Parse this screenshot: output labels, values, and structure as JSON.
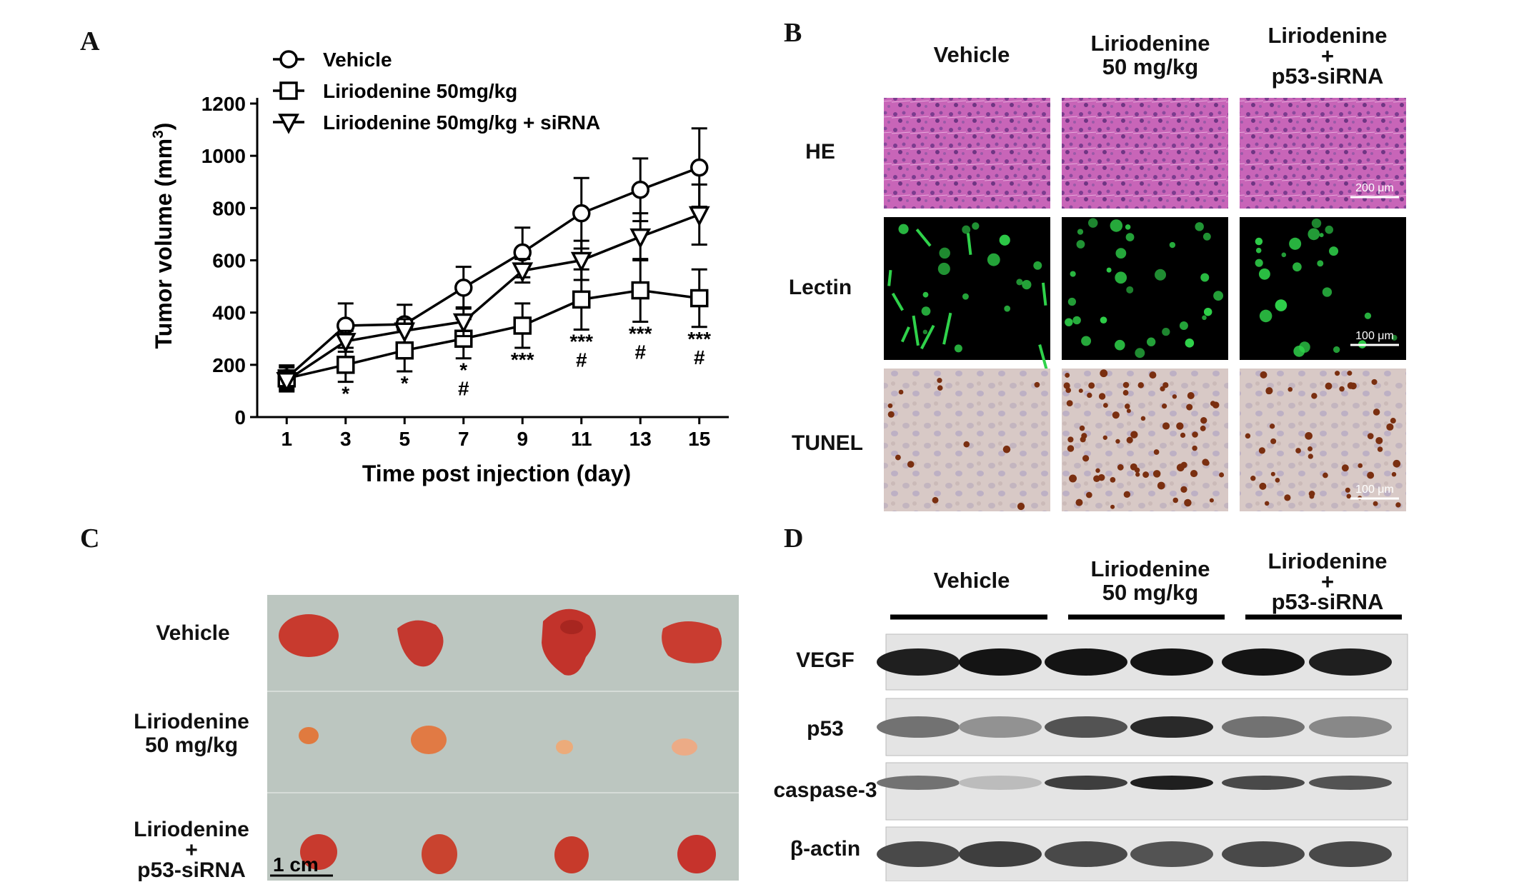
{
  "panels": {
    "a": "A",
    "b": "B",
    "c": "C",
    "d": "D"
  },
  "chart_data": {
    "type": "line",
    "ylabel_main": "Tumor volume (mm",
    "ylabel_sup": "3",
    "ylabel_close": ")",
    "xlabel": "Time post injection (day)",
    "x": [
      1,
      3,
      5,
      7,
      9,
      11,
      13,
      15
    ],
    "xticks": [
      "1",
      "3",
      "5",
      "7",
      "9",
      "11",
      "13",
      "15"
    ],
    "ylim": [
      0,
      1200
    ],
    "yticks": [
      0,
      200,
      400,
      600,
      800,
      1000,
      1200
    ],
    "legend_position": "top-left",
    "series": [
      {
        "name": "Vehicle",
        "marker": "circle",
        "values": [
          150,
          350,
          355,
          495,
          630,
          780,
          870,
          955
        ],
        "err": [
          40,
          85,
          75,
          80,
          95,
          135,
          120,
          150
        ]
      },
      {
        "name": "Liriodenine 50mg/kg",
        "marker": "square",
        "values": [
          148,
          200,
          255,
          300,
          350,
          450,
          485,
          455
        ],
        "err": [
          50,
          65,
          80,
          75,
          85,
          115,
          120,
          110
        ]
      },
      {
        "name": "Liriodenine 50mg/kg + siRNA",
        "marker": "triangle",
        "values": [
          140,
          290,
          330,
          365,
          560,
          600,
          690,
          775
        ],
        "err": [
          35,
          40,
          45,
          55,
          45,
          75,
          90,
          115
        ]
      }
    ],
    "annotations": [
      {
        "x": 3,
        "lines": [
          "*"
        ]
      },
      {
        "x": 5,
        "lines": [
          "*"
        ]
      },
      {
        "x": 7,
        "lines": [
          "*",
          "#"
        ]
      },
      {
        "x": 9,
        "lines": [
          "***"
        ]
      },
      {
        "x": 11,
        "lines": [
          "***",
          "#"
        ]
      },
      {
        "x": 13,
        "lines": [
          "***",
          "#"
        ]
      },
      {
        "x": 15,
        "lines": [
          "***",
          "#"
        ]
      }
    ]
  },
  "panel_b": {
    "col_vehicle": "Vehicle",
    "col_lirio_1": "Liriodenine",
    "col_lirio_2": "50 mg/kg",
    "col_sirna_1": "Liriodenine",
    "col_sirna_2": "+",
    "col_sirna_3": "p53-siRNA",
    "row_he": "HE",
    "row_lectin": "Lectin",
    "row_tunel": "TUNEL",
    "scale_he": "200 μm",
    "scale_lectin": "100 μm",
    "scale_tunel": "100 μm",
    "colors": {
      "he": "#c25fb0",
      "lectin": "#2fd24a",
      "tunel_bg": "#d9c8c4",
      "tunel_dot": "#7a2f10"
    }
  },
  "panel_c": {
    "row_vehicle": "Vehicle",
    "row_lirio_1": "Liriodenine",
    "row_lirio_2": "50 mg/kg",
    "row_sirna_1": "Liriodenine",
    "row_sirna_2": "+",
    "row_sirna_3": "p53-siRNA",
    "scale": "1 cm",
    "colors": {
      "background": "#bfc8c2",
      "tumor": "#c8342c"
    }
  },
  "panel_d": {
    "col_vehicle": "Vehicle",
    "col_lirio_1": "Liriodenine",
    "col_lirio_2": "50 mg/kg",
    "col_sirna_1": "Liriodenine",
    "col_sirna_2": "+",
    "col_sirna_3": "p53-siRNA",
    "row_vegf": "VEGF",
    "row_p53": "p53",
    "row_casp": "caspase-3",
    "row_actin": "β-actin"
  }
}
